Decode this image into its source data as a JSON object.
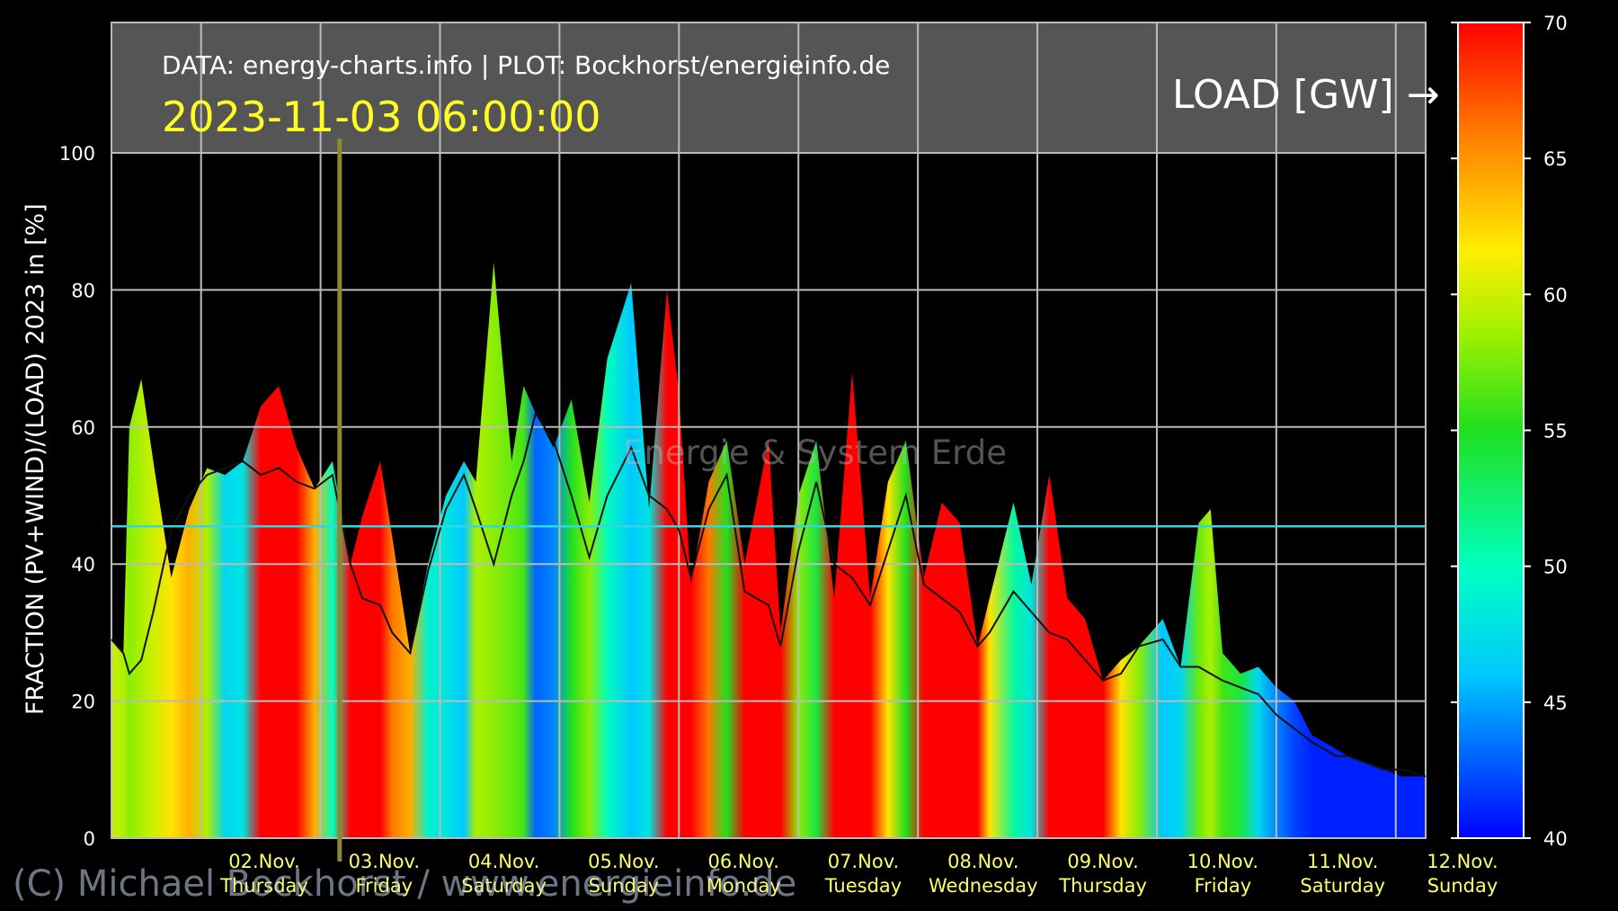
{
  "header": {
    "credit": "DATA: energy-charts.info | PLOT: Bockhorst/energieinfo.de",
    "timestamp": "2023-11-03 06:00:00",
    "load_label": "LOAD [GW] →"
  },
  "watermark": "Energie & System Erde",
  "copyright": "(C) Michael Bockhorst / www.energieinfo.de",
  "chart_data": {
    "type": "area",
    "ylabel": "FRACTION (PV+WIND)/(LOAD) 2023 in [%]",
    "ylim": [
      0,
      100
    ],
    "y_ticks": [
      0,
      20,
      40,
      60,
      80,
      100
    ],
    "xlim": [
      0,
      11
    ],
    "x_ticks": [
      {
        "day": "02.Nov.",
        "weekday": "Thursday"
      },
      {
        "day": "03.Nov.",
        "weekday": "Friday"
      },
      {
        "day": "04.Nov.",
        "weekday": "Saturday"
      },
      {
        "day": "05.Nov.",
        "weekday": "Sunday"
      },
      {
        "day": "06.Nov.",
        "weekday": "Monday"
      },
      {
        "day": "07.Nov.",
        "weekday": "Tuesday"
      },
      {
        "day": "08.Nov.",
        "weekday": "Wednesday"
      },
      {
        "day": "09.Nov.",
        "weekday": "Thursday"
      },
      {
        "day": "10.Nov.",
        "weekday": "Friday"
      },
      {
        "day": "11.Nov.",
        "weekday": "Saturday"
      },
      {
        "day": "12.Nov.",
        "weekday": "Sunday"
      }
    ],
    "reference_line": 45.5,
    "cursor_x": 2.0,
    "colorbar": {
      "min": 40,
      "max": 70,
      "ticks": [
        40,
        45,
        50,
        55,
        60,
        65,
        70
      ]
    },
    "grid": true,
    "series": [
      {
        "x": [
          0.0,
          0.1,
          0.15,
          0.25,
          0.35,
          0.5,
          0.65,
          0.8,
          0.95,
          1.1,
          1.25,
          1.4,
          1.55,
          1.7,
          1.85,
          2.0,
          2.1,
          2.25,
          2.35,
          2.5,
          2.65,
          2.8,
          2.95,
          3.05,
          3.2,
          3.35,
          3.45,
          3.55,
          3.7,
          3.85,
          4.0,
          4.15,
          4.35,
          4.5,
          4.65,
          4.75,
          4.85,
          5.0,
          5.15,
          5.3,
          5.5,
          5.6,
          5.75,
          5.9,
          6.05,
          6.2,
          6.35,
          6.5,
          6.65,
          6.8,
          6.95,
          7.1,
          7.25,
          7.35,
          7.55,
          7.7,
          7.85,
          8.0,
          8.15,
          8.3,
          8.45,
          8.6,
          8.8,
          8.95,
          9.1,
          9.2,
          9.3,
          9.45,
          9.6,
          9.75,
          9.9,
          10.05,
          10.15,
          10.25,
          10.35,
          10.5,
          10.65,
          10.8,
          11.0
        ],
        "fraction": [
          29,
          27,
          60,
          67,
          55,
          38,
          48,
          54,
          53,
          55,
          63,
          66,
          57,
          51,
          55,
          40,
          47,
          55,
          44,
          27,
          40,
          50,
          55,
          52,
          84,
          55,
          66,
          62,
          57,
          64,
          49,
          70,
          81,
          48,
          80,
          65,
          37,
          52,
          58,
          40,
          58,
          30,
          50,
          58,
          35,
          68,
          35,
          52,
          58,
          38,
          49,
          46,
          28,
          35,
          49,
          37,
          53,
          35,
          32,
          23,
          26,
          28,
          32,
          25,
          46,
          48,
          27,
          24,
          25,
          22,
          20,
          15,
          14,
          13,
          12,
          11,
          10,
          9,
          9
        ],
        "load": [
          60,
          59,
          58,
          59,
          60,
          62,
          64,
          59,
          47,
          48,
          70,
          70,
          70,
          64,
          50,
          70,
          70,
          70,
          66,
          64,
          49,
          48,
          46,
          59,
          58,
          57,
          56,
          43,
          44,
          55,
          58,
          50,
          46,
          48,
          70,
          70,
          70,
          66,
          55,
          70,
          70,
          70,
          58,
          54,
          70,
          70,
          70,
          62,
          55,
          70,
          70,
          70,
          70,
          62,
          51,
          48,
          70,
          70,
          70,
          70,
          62,
          58,
          46,
          47,
          57,
          59,
          56,
          54,
          47,
          44,
          42,
          41,
          41,
          41,
          41,
          41,
          41,
          41,
          41
        ],
        "black_line": [
          29,
          27,
          24,
          26,
          33,
          45,
          50,
          53,
          54,
          55,
          53,
          54,
          52,
          51,
          53,
          40,
          35,
          34,
          30,
          27,
          39,
          48,
          53,
          48,
          40,
          50,
          55,
          62,
          58,
          50,
          41,
          50,
          57,
          50,
          48,
          45,
          38,
          48,
          53,
          36,
          34,
          28,
          42,
          52,
          40,
          38,
          34,
          42,
          50,
          37,
          35,
          33,
          28,
          30,
          36,
          33,
          30,
          29,
          26,
          23,
          24,
          28,
          29,
          25,
          25,
          24,
          23,
          22,
          21,
          18,
          16,
          14,
          13,
          12,
          12,
          11,
          10,
          10,
          9
        ]
      }
    ]
  }
}
